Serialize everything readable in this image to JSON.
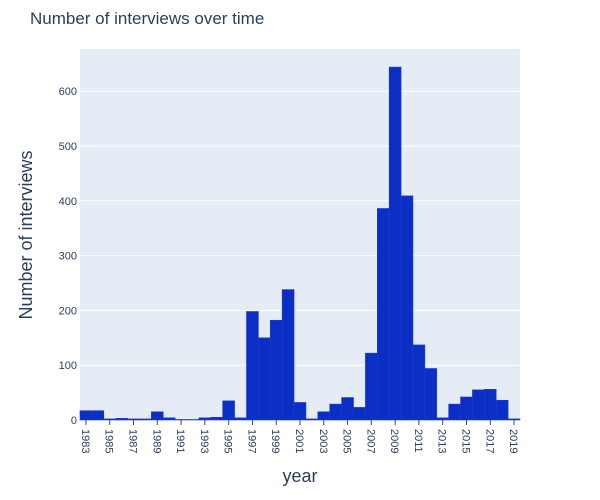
{
  "chart_data": {
    "type": "bar",
    "title": "Number of interviews over time",
    "xlabel": "year",
    "ylabel": "Number of interviews",
    "x": [
      1983,
      1984,
      1985,
      1986,
      1987,
      1988,
      1989,
      1990,
      1991,
      1992,
      1993,
      1994,
      1995,
      1996,
      1997,
      1998,
      1999,
      2000,
      2001,
      2002,
      2003,
      2004,
      2005,
      2006,
      2007,
      2008,
      2009,
      2010,
      2011,
      2012,
      2013,
      2014,
      2015,
      2016,
      2017,
      2018,
      2019
    ],
    "values": [
      17,
      17,
      2,
      3,
      2,
      2,
      15,
      4,
      1,
      1,
      4,
      5,
      35,
      4,
      198,
      150,
      182,
      238,
      32,
      2,
      15,
      29,
      41,
      23,
      122,
      386,
      644,
      409,
      137,
      94,
      4,
      29,
      42,
      55,
      56,
      36,
      2
    ],
    "yticks": [
      0,
      100,
      200,
      300,
      400,
      500,
      600
    ],
    "xticks": [
      "1983",
      "1985",
      "1987",
      "1989",
      "1991",
      "1993",
      "1995",
      "1997",
      "1999",
      "2001",
      "2003",
      "2005",
      "2007",
      "2009",
      "2011",
      "2013",
      "2015",
      "2017",
      "2019"
    ],
    "ylim": [
      0,
      677
    ],
    "xlim": [
      1982.5,
      2019.5
    ],
    "grid": true,
    "colors": {
      "bar": "#0b2fc4",
      "bar_outline": "#1d3fd0",
      "plot_bg": "#e5ecf6",
      "grid": "#ffffff",
      "text": "#2a3f5f"
    }
  }
}
